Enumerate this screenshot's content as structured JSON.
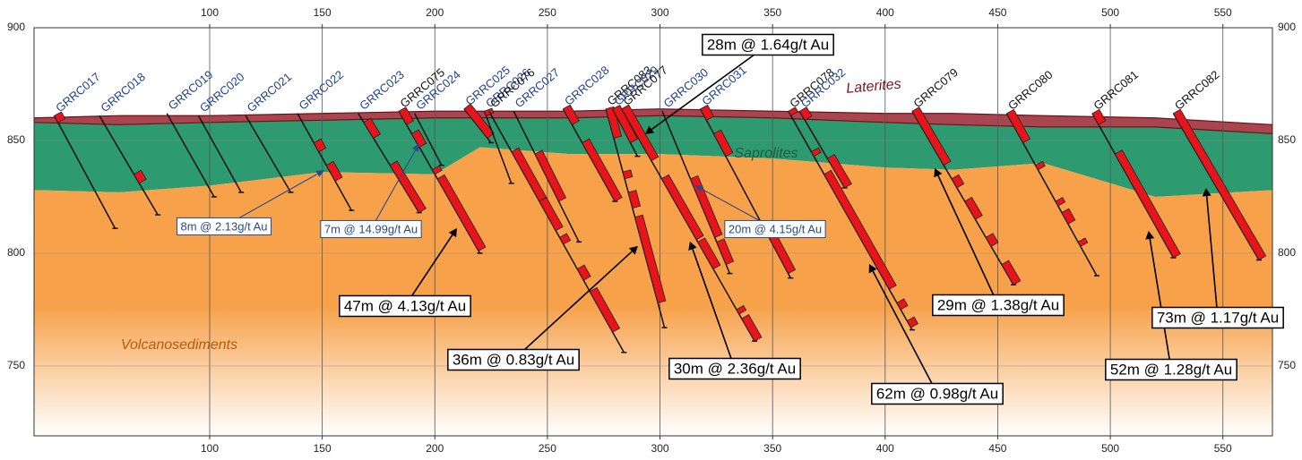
{
  "chart_data": {
    "type": "section",
    "xlim": [
      22,
      572
    ],
    "ylim": [
      719,
      900
    ],
    "xticks": [
      100,
      150,
      200,
      250,
      300,
      350,
      400,
      450,
      500,
      550
    ],
    "yticks": [
      750,
      800,
      850,
      900
    ],
    "grid": true,
    "strata": {
      "x": [
        22,
        60,
        100,
        150,
        200,
        220,
        260,
        300,
        350,
        400,
        430,
        470,
        520,
        572
      ],
      "units": [
        {
          "name": "Laterites",
          "color": "#a8454e",
          "text_color": "#7a1520",
          "top": [
            860,
            861,
            861,
            862,
            863,
            863,
            863,
            864,
            863,
            862,
            862,
            861,
            860,
            857
          ],
          "base": [
            858,
            857,
            858,
            859,
            860,
            860,
            860,
            861,
            860,
            858,
            857,
            856,
            856,
            853
          ]
        },
        {
          "name": "Saprolites",
          "color": "#2e9a70",
          "text_color": "#1d5e3f",
          "base": [
            828,
            827,
            830,
            836,
            835,
            847,
            844,
            844,
            842,
            838,
            837,
            840,
            825,
            828
          ]
        },
        {
          "name": "Volcanosediments",
          "color": "#f7a14a",
          "text_color": "#b35c0c"
        }
      ]
    },
    "holes": [
      {
        "name": "GRRC017",
        "label_color": "#1f3f8f",
        "collar": [
          31,
          861
        ],
        "end": [
          58,
          811
        ],
        "intervals": [
          [
            861,
            858
          ]
        ]
      },
      {
        "name": "GRRC018",
        "label_color": "#1f3f8f",
        "collar": [
          51,
          861
        ],
        "end": [
          77,
          817
        ],
        "intervals": [
          [
            835,
            831
          ]
        ]
      },
      {
        "name": "GRRC019",
        "label_color": "#1f3f8f",
        "collar": [
          81,
          862
        ],
        "end": [
          102,
          825
        ],
        "intervals": []
      },
      {
        "name": "GRRC020",
        "label_color": "#1f3f8f",
        "collar": [
          95,
          861
        ],
        "end": [
          114,
          827
        ],
        "intervals": []
      },
      {
        "name": "GRRC021",
        "label_color": "#1f3f8f",
        "collar": [
          116,
          861
        ],
        "end": [
          136,
          827
        ],
        "intervals": []
      },
      {
        "name": "GRRC022",
        "label_color": "#1f3f8f",
        "collar": [
          139,
          862
        ],
        "end": [
          163,
          819
        ],
        "intervals": [
          [
            849,
            845
          ],
          [
            839,
            832
          ]
        ]
      },
      {
        "name": "GRRC023",
        "label_color": "#1f3f8f",
        "collar": [
          166,
          862
        ],
        "end": [
          193,
          818
        ],
        "intervals": [
          [
            858,
            851
          ],
          [
            839,
            818
          ]
        ]
      },
      {
        "name": "GRRC075",
        "label_color": "#111111",
        "collar": [
          184,
          863
        ],
        "end": [
          220,
          800
        ],
        "intervals": [
          [
            863,
            857
          ],
          [
            853,
            847
          ],
          [
            837,
            835
          ],
          [
            833,
            801
          ]
        ]
      },
      {
        "name": "GRRC024",
        "label_color": "#1f3f8f",
        "collar": [
          191,
          862
        ],
        "end": [
          203,
          839
        ],
        "intervals": []
      },
      {
        "name": "GRRC025",
        "label_color": "#1f3f8f",
        "collar": [
          213,
          864
        ],
        "end": [
          225,
          849
        ],
        "intervals": [
          [
            864,
            851
          ]
        ]
      },
      {
        "name": "GRRC026",
        "label_color": "#1f3f8f",
        "collar": [
          222,
          863
        ],
        "end": [
          234,
          831
        ],
        "intervals": [
          [
            863,
            861
          ]
        ]
      },
      {
        "name": "GRRC076",
        "label_color": "#111111",
        "collar": [
          224,
          863
        ],
        "end": [
          284,
          756
        ],
        "intervals": [
          [
            845,
            823
          ],
          [
            823,
            810
          ],
          [
            807,
            804
          ],
          [
            793,
            788
          ],
          [
            783,
            765
          ]
        ]
      },
      {
        "name": "GRRC027",
        "label_color": "#1f3f8f",
        "collar": [
          235,
          863
        ],
        "end": [
          264,
          805
        ],
        "intervals": [
          [
            844,
            823
          ]
        ]
      },
      {
        "name": "GRRC028",
        "label_color": "#1f3f8f",
        "collar": [
          257,
          864
        ],
        "end": [
          280,
          823
        ],
        "intervals": [
          [
            864,
            857
          ],
          [
            849,
            823
          ]
        ]
      },
      {
        "name": "GRRC083",
        "label_color": "#111111",
        "collar": [
          276,
          864
        ],
        "end": [
          302,
          767
        ],
        "intervals": [
          [
            864,
            851
          ],
          [
            836,
            833
          ],
          [
            827,
            820
          ],
          [
            816,
            778
          ]
        ]
      },
      {
        "name": "GRRC029",
        "label_color": "#1f3f8f",
        "collar": [
          279,
          864
        ],
        "end": [
          290,
          843
        ],
        "intervals": [
          [
            864,
            849
          ]
        ]
      },
      {
        "name": "GRRC077",
        "label_color": "#111111",
        "collar": [
          283,
          864
        ],
        "end": [
          342,
          761
        ],
        "intervals": [
          [
            864,
            841
          ],
          [
            833,
            806
          ],
          [
            805,
            793
          ],
          [
            775,
            773
          ],
          [
            771,
            761
          ]
        ]
      },
      {
        "name": "GRRC030",
        "label_color": "#1f3f8f",
        "collar": [
          301,
          863
        ],
        "end": [
          331,
          791
        ],
        "intervals": [
          [
            833,
            807
          ],
          [
            805,
            795
          ]
        ]
      },
      {
        "name": "GRRC031",
        "label_color": "#1f3f8f",
        "collar": [
          318,
          864
        ],
        "end": [
          358,
          789
        ],
        "intervals": [
          [
            864,
            859
          ],
          [
            853,
            843
          ],
          [
            810,
            791
          ]
        ]
      },
      {
        "name": "GRRC078",
        "label_color": "#111111",
        "collar": [
          357,
          863
        ],
        "end": [
          412,
          766
        ],
        "intervals": [
          [
            863,
            861
          ],
          [
            845,
            843
          ],
          [
            835,
            784
          ],
          [
            778,
            775
          ],
          [
            770,
            767
          ]
        ]
      },
      {
        "name": "GRRC032",
        "label_color": "#1f3f8f",
        "collar": [
          362,
          863
        ],
        "end": [
          382,
          829
        ],
        "intervals": [
          [
            863,
            859
          ],
          [
            842,
            829
          ]
        ]
      },
      {
        "name": "GRRC079",
        "label_color": "#111111",
        "collar": [
          412,
          863
        ],
        "end": [
          457,
          786
        ],
        "intervals": [
          [
            863,
            839
          ],
          [
            833,
            829
          ],
          [
            823,
            815
          ],
          [
            807,
            803
          ],
          [
            795,
            786
          ]
        ]
      },
      {
        "name": "GRRC080",
        "label_color": "#111111",
        "collar": [
          454,
          862
        ],
        "end": [
          494,
          790
        ],
        "intervals": [
          [
            862,
            849
          ],
          [
            839,
            837
          ],
          [
            823,
            821
          ],
          [
            818,
            813
          ],
          [
            805,
            803
          ]
        ]
      },
      {
        "name": "GRRC081",
        "label_color": "#111111",
        "collar": [
          492,
          862
        ],
        "end": [
          528,
          798
        ],
        "intervals": [
          [
            862,
            857
          ],
          [
            844,
            798
          ]
        ]
      },
      {
        "name": "GRRC082",
        "label_color": "#111111",
        "collar": [
          528,
          862
        ],
        "end": [
          566,
          797
        ],
        "intervals": [
          [
            862,
            797
          ]
        ]
      }
    ],
    "annotations": [
      {
        "text": "28m @ 1.64g/t Au",
        "color": "#000000",
        "x": 293.4,
        "y": 852.8
      },
      {
        "text": "8m @ 2.13g/t Au",
        "color": "#2a4a8a",
        "x": 151,
        "y": 836.9
      },
      {
        "text": "7m @ 14.99g/t Au",
        "color": "#2a4a8a",
        "x": 193.1,
        "y": 848.8
      },
      {
        "text": "20m @ 4.15g/t Au",
        "color": "#2a4a8a",
        "x": 315.3,
        "y": 830.2
      },
      {
        "text": "47m @ 4.13g/t Au",
        "color": "#000000",
        "x": 209.8,
        "y": 811.1
      },
      {
        "text": "36m @ 0.83g/t Au",
        "color": "#000000",
        "x": 290.2,
        "y": 803.2
      },
      {
        "text": "30m @ 2.36g/t Au",
        "color": "#000000",
        "x": 313.3,
        "y": 805.2
      },
      {
        "text": "62m @ 0.98g/t Au",
        "color": "#000000",
        "x": 392.9,
        "y": 795.2
      },
      {
        "text": "29m @ 1.38g/t Au",
        "color": "#000000",
        "x": 422,
        "y": 837.7
      },
      {
        "text": "52m @ 1.28g/t Au",
        "color": "#000000",
        "x": 517,
        "y": 809.9
      },
      {
        "text": "73m @ 1.17g/t Au",
        "color": "#000000",
        "x": 542.5,
        "y": 828.9
      }
    ]
  }
}
